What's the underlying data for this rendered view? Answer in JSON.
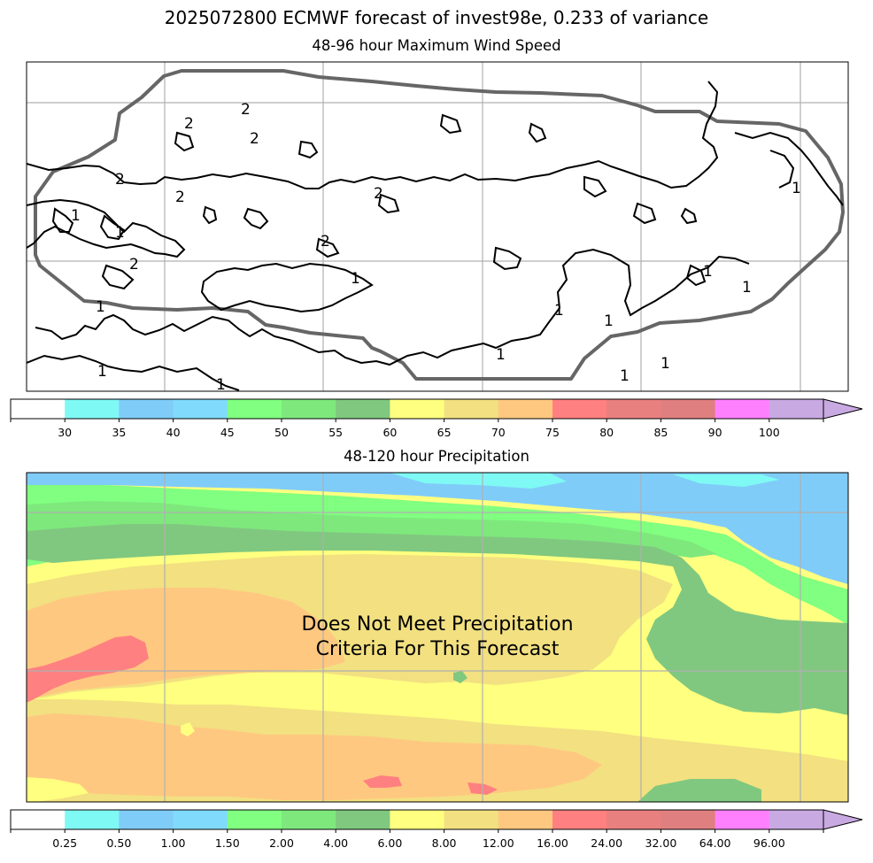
{
  "suptitle": "2025072800 ECMWF forecast of invest98e, 0.233 of variance",
  "colors": {
    "levels": [
      "#ffffff",
      "#7ff9f4",
      "#80ccf9",
      "#80dafc",
      "#80ff80",
      "#7ee87d",
      "#80c87f",
      "#ffff80",
      "#f2e081",
      "#ffc880",
      "#ff8080",
      "#e88080",
      "#df7f7f",
      "#ff80ff",
      "#c9a9e2"
    ],
    "grid": "#b0b0b0",
    "contour": "#000000",
    "boundary": "#666666"
  },
  "chart_data": [
    {
      "type": "heatmap",
      "title": "48-96 hour Maximum Wind Speed",
      "grid": true,
      "contour_labels": [
        "1",
        "2"
      ],
      "colorbar": {
        "ticks": [
          "30",
          "35",
          "40",
          "45",
          "50",
          "55",
          "60",
          "65",
          "70",
          "75",
          "80",
          "85",
          "90",
          "100"
        ],
        "extend": "max"
      }
    },
    {
      "type": "heatmap",
      "title": "48-120 hour Precipitation",
      "grid": true,
      "annotation": [
        "Does Not Meet Precipitation",
        "Criteria For This Forecast"
      ],
      "colorbar": {
        "ticks": [
          "0.25",
          "0.50",
          "1.00",
          "1.50",
          "2.00",
          "4.00",
          "6.00",
          "8.00",
          "12.00",
          "16.00",
          "24.00",
          "32.00",
          "64.00",
          "96.00"
        ],
        "extend": "max"
      }
    }
  ]
}
